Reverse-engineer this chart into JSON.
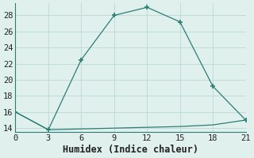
{
  "line1_x": [
    0,
    3,
    6,
    9,
    12,
    15,
    18,
    21
  ],
  "line1_y": [
    16,
    13.8,
    22.5,
    28,
    29,
    27.2,
    19.2,
    15
  ],
  "line2_x": [
    0,
    3,
    6,
    9,
    12,
    15,
    18,
    21
  ],
  "line2_y": [
    16,
    13.8,
    13.9,
    14.0,
    14.1,
    14.2,
    14.4,
    15
  ],
  "line_color": "#2d7d74",
  "bg_color": "#dff0ed",
  "grid_color": "#c0dbd8",
  "spine_color": "#2d7d74",
  "xlabel": "Humidex (Indice chaleur)",
  "xlim": [
    0,
    21
  ],
  "ylim": [
    13.5,
    29.5
  ],
  "xticks": [
    0,
    3,
    6,
    9,
    12,
    15,
    18,
    21
  ],
  "yticks": [
    14,
    16,
    18,
    20,
    22,
    24,
    26,
    28
  ],
  "xlabel_fontsize": 8.5,
  "tick_fontsize": 7.5
}
